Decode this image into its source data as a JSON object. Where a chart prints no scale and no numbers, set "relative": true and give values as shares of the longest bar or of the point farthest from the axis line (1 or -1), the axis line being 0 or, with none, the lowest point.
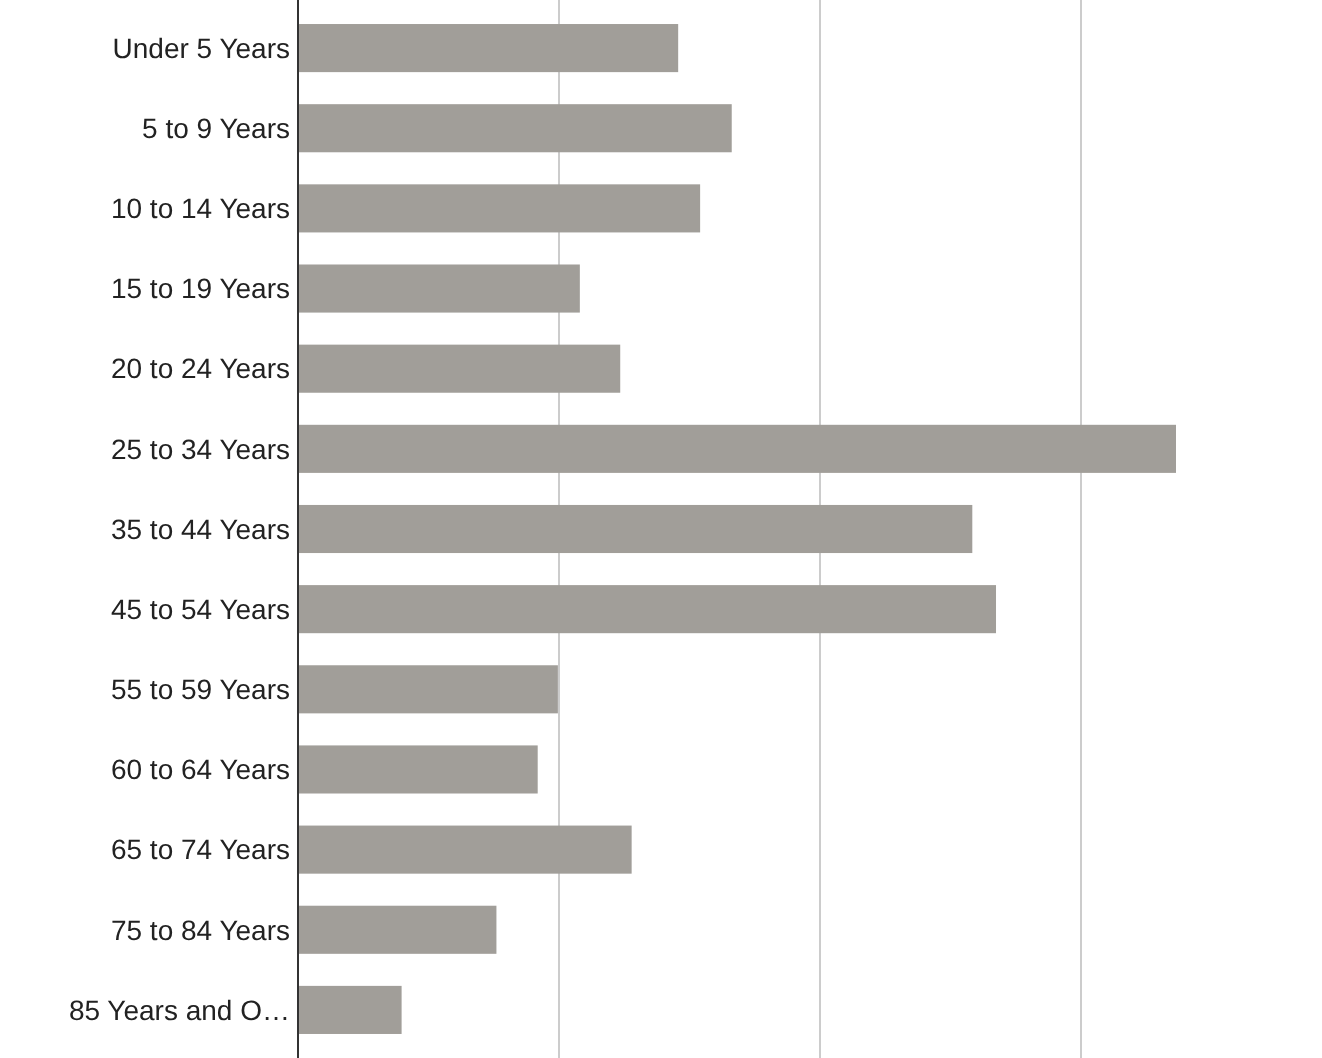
{
  "chart_data": {
    "type": "bar",
    "orientation": "horizontal",
    "relative": true,
    "grid": true,
    "color": "#a19e99",
    "categories": [
      "Under 5 Years",
      "5 to 9 Years",
      "10 to 14 Years",
      "15 to 19 Years",
      "20 to 24 Years",
      "25 to 34 Years",
      "35 to 44 Years",
      "45 to 54 Years",
      "55 to 59 Years",
      "60 to 64 Years",
      "65 to 74 Years",
      "75 to 84 Years",
      "85 Years and O…"
    ],
    "values": [
      0.433,
      0.494,
      0.458,
      0.321,
      0.367,
      1,
      0.768,
      0.795,
      0.296,
      0.273,
      0.38,
      0.226,
      0.118
    ]
  }
}
